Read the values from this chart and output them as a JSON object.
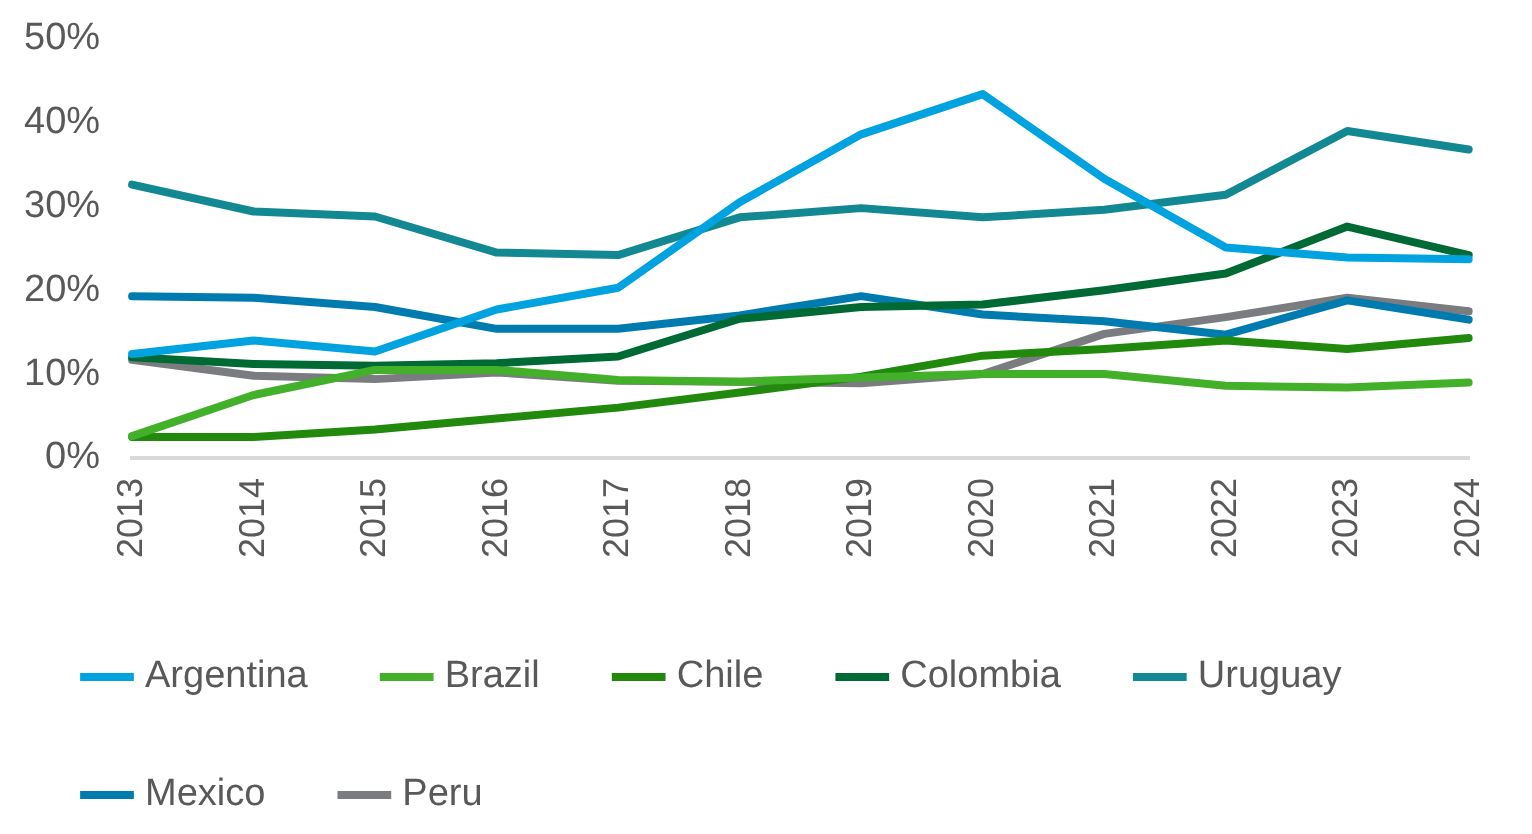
{
  "chart_data": {
    "type": "line",
    "categories": [
      "2013",
      "2014",
      "2015",
      "2016",
      "2017",
      "2018",
      "2019",
      "2020",
      "2021",
      "2022",
      "2023",
      "2024"
    ],
    "ylim": [
      0,
      50
    ],
    "yticks": [
      {
        "value": 0,
        "label": "0%"
      },
      {
        "value": 10,
        "label": "10%"
      },
      {
        "value": 20,
        "label": "20%"
      },
      {
        "value": 30,
        "label": "30%"
      },
      {
        "value": 40,
        "label": "40%"
      },
      {
        "value": 50,
        "label": "50%"
      }
    ],
    "grid": false,
    "legend": "bottom",
    "marker": "none",
    "line_style": "solid",
    "series": [
      {
        "name": "Argentina",
        "color": "#00a3e0",
        "values": [
          12.4,
          14,
          12.7,
          17.7,
          20.3,
          30.5,
          38.6,
          43.4,
          33.3,
          25.1,
          23.9,
          23.7
        ]
      },
      {
        "name": "Brazil",
        "color": "#43b02a",
        "values": [
          2.6,
          7.5,
          10.5,
          10.5,
          9.3,
          9.1,
          9.6,
          10,
          10,
          8.6,
          8.4,
          9
        ]
      },
      {
        "name": "Chile",
        "color": "#218a0c",
        "values": [
          2.5,
          2.5,
          3.4,
          4.7,
          6,
          7.8,
          9.7,
          12.2,
          13,
          14,
          13,
          14.3
        ]
      },
      {
        "name": "Colombia",
        "color": "#006a35",
        "values": [
          12,
          11.2,
          11,
          11.3,
          12.1,
          16.6,
          18,
          18.3,
          20,
          22,
          27.6,
          24.2
        ]
      },
      {
        "name": "Uruguay",
        "color": "#128893",
        "values": [
          32.6,
          29.4,
          28.8,
          24.5,
          24.2,
          28.7,
          29.8,
          28.7,
          29.6,
          31.4,
          39,
          36.8
        ]
      },
      {
        "name": "Mexico",
        "color": "#007bb0",
        "values": [
          19.3,
          19.1,
          18,
          15.4,
          15.4,
          17,
          19.3,
          17.1,
          16.3,
          14.7,
          18.8,
          16.5
        ]
      },
      {
        "name": "Peru",
        "color": "#7a7c80",
        "values": [
          11.7,
          9.8,
          9.4,
          10.2,
          9.2,
          9.1,
          8.9,
          10,
          14.8,
          16.8,
          19.1,
          17.5
        ]
      }
    ]
  }
}
